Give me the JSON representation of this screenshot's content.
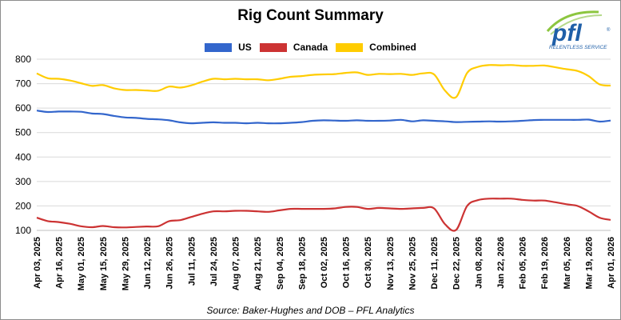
{
  "chart_data": {
    "type": "line",
    "title": "Rig Count Summary",
    "source": "Source: Baker-Hughes and DOB – PFL Analytics",
    "logo": {
      "text": "pfl",
      "tagline": "RELENTLESS SERVICE",
      "mark": "®"
    },
    "ylim": [
      100,
      800
    ],
    "yticks": [
      100,
      200,
      300,
      400,
      500,
      600,
      700,
      800
    ],
    "grid": true,
    "legend_position": "top",
    "xticks": [
      "Apr 03, 2025",
      "Apr 16, 2025",
      "May 01, 2025",
      "May 15, 2025",
      "May 29, 2025",
      "Jun 12, 2025",
      "Jun 26, 2025",
      "Jul 11, 2025",
      "Jul 24, 2025",
      "Aug 07, 2025",
      "Aug 21, 2025",
      "Sep 04, 2025",
      "Sep 18, 2025",
      "Oct 02, 2025",
      "Oct 16, 2025",
      "Oct 30, 2025",
      "Nov 13, 2025",
      "Nov 25, 2025",
      "Dec 11, 2025",
      "Dec 22, 2025",
      "Jan 08, 2026",
      "Jan 22, 2026",
      "Feb 05, 2026",
      "Feb 19, 2026",
      "Mar 05, 2026",
      "Mar 19, 2026",
      "Apr 01, 2026"
    ],
    "x": [
      "Apr 03, 2025",
      "Apr 09, 2025",
      "Apr 16, 2025",
      "Apr 24, 2025",
      "May 01, 2025",
      "May 08, 2025",
      "May 15, 2025",
      "May 22, 2025",
      "May 29, 2025",
      "Jun 05, 2025",
      "Jun 12, 2025",
      "Jun 19, 2025",
      "Jun 26, 2025",
      "Jul 03, 2025",
      "Jul 11, 2025",
      "Jul 17, 2025",
      "Jul 24, 2025",
      "Jul 31, 2025",
      "Aug 07, 2025",
      "Aug 14, 2025",
      "Aug 21, 2025",
      "Aug 28, 2025",
      "Sep 04, 2025",
      "Sep 11, 2025",
      "Sep 18, 2025",
      "Sep 25, 2025",
      "Oct 02, 2025",
      "Oct 09, 2025",
      "Oct 16, 2025",
      "Oct 23, 2025",
      "Oct 30, 2025",
      "Nov 06, 2025",
      "Nov 13, 2025",
      "Nov 20, 2025",
      "Nov 25, 2025",
      "Dec 04, 2025",
      "Dec 11, 2025",
      "Dec 18, 2025",
      "Dec 22, 2025",
      "Jan 02, 2026",
      "Jan 08, 2026",
      "Jan 15, 2026",
      "Jan 22, 2026",
      "Jan 29, 2026",
      "Feb 05, 2026",
      "Feb 12, 2026",
      "Feb 19, 2026",
      "Feb 26, 2026",
      "Mar 05, 2026",
      "Mar 12, 2026",
      "Mar 19, 2026",
      "Mar 26, 2026",
      "Apr 01, 2026"
    ],
    "series": [
      {
        "name": "US",
        "color": "#3366cc",
        "values": [
          590,
          584,
          586,
          586,
          585,
          578,
          576,
          568,
          562,
          560,
          556,
          554,
          550,
          542,
          538,
          540,
          542,
          540,
          540,
          538,
          540,
          538,
          538,
          540,
          543,
          548,
          550,
          549,
          548,
          550,
          548,
          548,
          549,
          552,
          546,
          550,
          548,
          546,
          543,
          544,
          545,
          546,
          545,
          546,
          548,
          551,
          552,
          552,
          552,
          552,
          553,
          545,
          549
        ]
      },
      {
        "name": "Canada",
        "color": "#cc3333",
        "values": [
          152,
          138,
          134,
          127,
          117,
          113,
          118,
          113,
          112,
          114,
          116,
          117,
          138,
          142,
          155,
          168,
          178,
          178,
          180,
          180,
          178,
          176,
          182,
          188,
          188,
          188,
          188,
          190,
          196,
          196,
          188,
          192,
          190,
          188,
          190,
          192,
          190,
          125,
          102,
          200,
          224,
          230,
          230,
          230,
          225,
          222,
          222,
          215,
          207,
          200,
          178,
          152,
          143
        ]
      },
      {
        "name": "Combined",
        "color": "#ffcc00",
        "values": [
          742,
          722,
          720,
          713,
          702,
          691,
          694,
          681,
          674,
          674,
          672,
          671,
          688,
          684,
          693,
          708,
          720,
          718,
          720,
          718,
          718,
          714,
          720,
          728,
          731,
          736,
          738,
          739,
          744,
          746,
          736,
          740,
          739,
          740,
          736,
          742,
          738,
          671,
          645,
          744,
          769,
          776,
          775,
          776,
          773,
          773,
          774,
          767,
          759,
          752,
          731,
          697,
          692
        ]
      }
    ]
  }
}
